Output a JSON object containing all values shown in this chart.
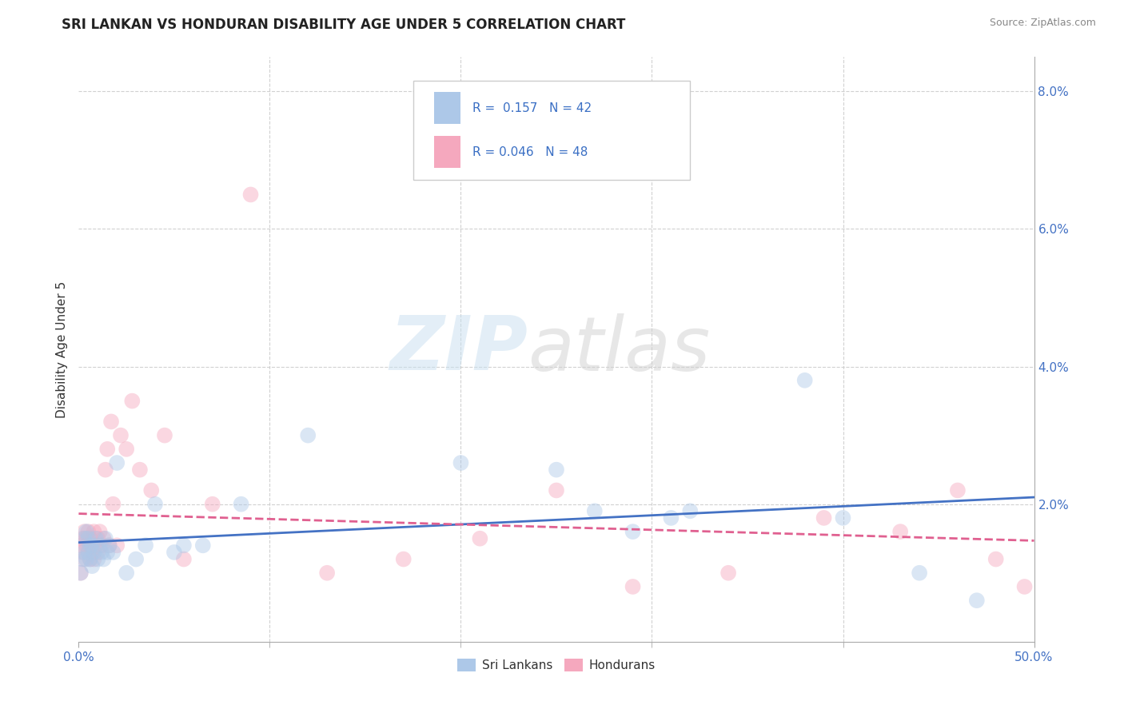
{
  "title": "SRI LANKAN VS HONDURAN DISABILITY AGE UNDER 5 CORRELATION CHART",
  "source": "Source: ZipAtlas.com",
  "ylabel": "Disability Age Under 5",
  "legend_label1": "Sri Lankans",
  "legend_label2": "Hondurans",
  "r1": "0.157",
  "n1": "42",
  "r2": "0.046",
  "n2": "48",
  "xlim": [
    0.0,
    0.5
  ],
  "ylim": [
    0.0,
    0.085
  ],
  "yticks": [
    0.02,
    0.04,
    0.06,
    0.08
  ],
  "ytick_labels": [
    "2.0%",
    "4.0%",
    "6.0%",
    "8.0%"
  ],
  "color_blue": "#adc8e8",
  "color_pink": "#f5a8be",
  "line_blue": "#4472c4",
  "line_pink": "#e06090",
  "background_color": "#ffffff",
  "grid_color": "#cccccc",
  "watermark_zip": "ZIP",
  "watermark_atlas": "atlas",
  "dot_size": 200,
  "dot_alpha": 0.45,
  "sri_lankans_x": [
    0.001,
    0.002,
    0.003,
    0.003,
    0.004,
    0.004,
    0.005,
    0.005,
    0.006,
    0.006,
    0.007,
    0.007,
    0.008,
    0.009,
    0.01,
    0.011,
    0.012,
    0.013,
    0.014,
    0.015,
    0.016,
    0.018,
    0.02,
    0.025,
    0.03,
    0.035,
    0.04,
    0.05,
    0.055,
    0.065,
    0.085,
    0.12,
    0.2,
    0.25,
    0.27,
    0.32,
    0.38,
    0.4,
    0.44,
    0.47,
    0.31,
    0.29
  ],
  "sri_lankans_y": [
    0.01,
    0.012,
    0.013,
    0.015,
    0.012,
    0.016,
    0.013,
    0.015,
    0.012,
    0.014,
    0.011,
    0.014,
    0.013,
    0.015,
    0.012,
    0.014,
    0.013,
    0.012,
    0.015,
    0.013,
    0.014,
    0.013,
    0.026,
    0.01,
    0.012,
    0.014,
    0.02,
    0.013,
    0.014,
    0.014,
    0.02,
    0.03,
    0.026,
    0.025,
    0.019,
    0.019,
    0.038,
    0.018,
    0.01,
    0.006,
    0.018,
    0.016
  ],
  "hondurans_x": [
    0.001,
    0.001,
    0.002,
    0.002,
    0.003,
    0.003,
    0.004,
    0.004,
    0.005,
    0.005,
    0.006,
    0.006,
    0.007,
    0.007,
    0.008,
    0.008,
    0.009,
    0.01,
    0.01,
    0.011,
    0.012,
    0.013,
    0.014,
    0.015,
    0.016,
    0.017,
    0.018,
    0.02,
    0.022,
    0.025,
    0.028,
    0.032,
    0.038,
    0.045,
    0.055,
    0.07,
    0.09,
    0.13,
    0.17,
    0.21,
    0.25,
    0.29,
    0.34,
    0.39,
    0.43,
    0.46,
    0.48,
    0.495
  ],
  "hondurans_y": [
    0.01,
    0.014,
    0.015,
    0.013,
    0.016,
    0.012,
    0.015,
    0.014,
    0.013,
    0.016,
    0.012,
    0.015,
    0.014,
    0.013,
    0.016,
    0.012,
    0.014,
    0.015,
    0.013,
    0.016,
    0.014,
    0.015,
    0.025,
    0.028,
    0.014,
    0.032,
    0.02,
    0.014,
    0.03,
    0.028,
    0.035,
    0.025,
    0.022,
    0.03,
    0.012,
    0.02,
    0.065,
    0.01,
    0.012,
    0.015,
    0.022,
    0.008,
    0.01,
    0.018,
    0.016,
    0.022,
    0.012,
    0.008
  ]
}
